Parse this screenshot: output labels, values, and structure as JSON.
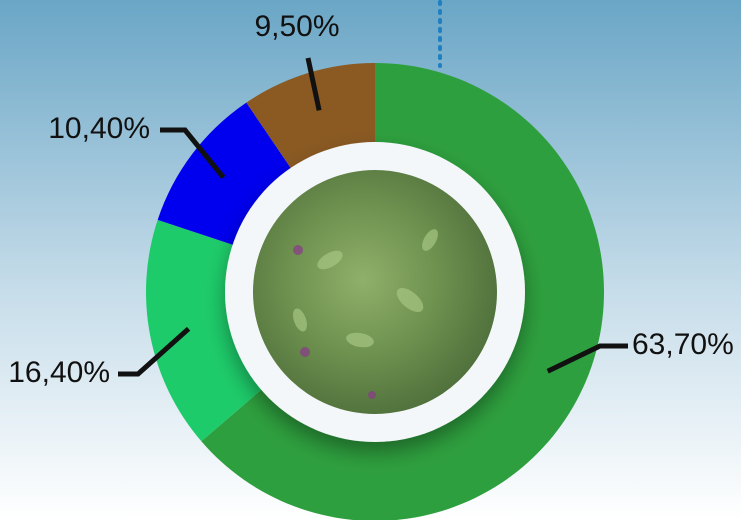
{
  "chart_data": {
    "type": "donut",
    "values": [
      63.7,
      16.4,
      10.4,
      9.5
    ],
    "value_labels": [
      "63,70%",
      "16,40%",
      "10,40%",
      "9,50%"
    ],
    "colors": [
      "#2e9f3e",
      "#1ecb6a",
      "#0000ee",
      "#8b5a23"
    ]
  }
}
